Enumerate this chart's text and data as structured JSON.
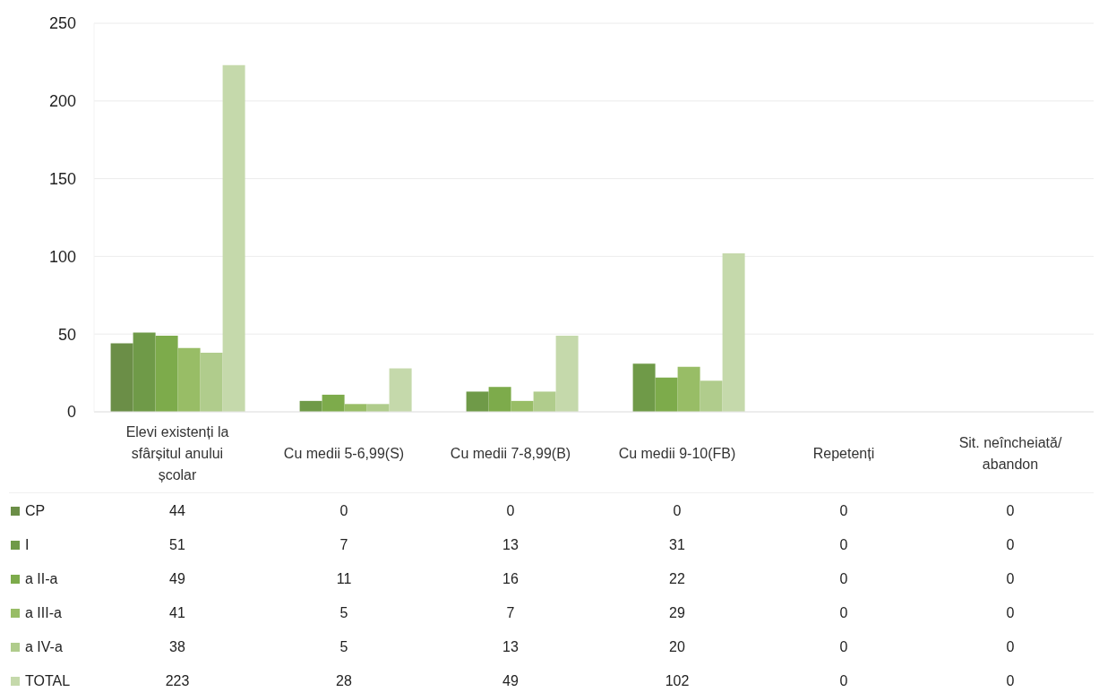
{
  "chart_data": {
    "type": "bar",
    "categories": [
      "Elevi existenți la sfârșitul anului școlar",
      "Cu medii 5-6,99(S)",
      "Cu medii 7-8,99(B)",
      "Cu medii 9-10(FB)",
      "Repetenți",
      "Sit. neîncheiată/ abandon"
    ],
    "series": [
      {
        "name": "CP",
        "color": "#6b8e47",
        "values": [
          44,
          0,
          0,
          0,
          0,
          0
        ]
      },
      {
        "name": "I",
        "color": "#6f9a48",
        "values": [
          51,
          7,
          13,
          31,
          0,
          0
        ]
      },
      {
        "name": "a II-a",
        "color": "#7dab4b",
        "values": [
          49,
          11,
          16,
          22,
          0,
          0
        ]
      },
      {
        "name": "a III-a",
        "color": "#98bd66",
        "values": [
          41,
          5,
          7,
          29,
          0,
          0
        ]
      },
      {
        "name": "a IV-a",
        "color": "#b0cc8c",
        "values": [
          38,
          5,
          13,
          20,
          0,
          0
        ]
      },
      {
        "name": "TOTAL",
        "color": "#c5d9ab",
        "values": [
          223,
          28,
          49,
          102,
          0,
          0
        ]
      }
    ],
    "ylim": [
      0,
      250
    ],
    "yticks": [
      0,
      50,
      100,
      150,
      200,
      250
    ],
    "grid": "y",
    "legend": "bottom",
    "data_labels": true
  }
}
